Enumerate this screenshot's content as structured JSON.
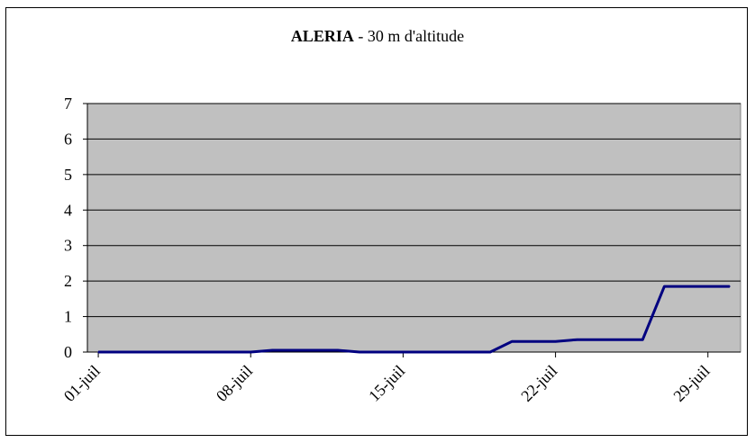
{
  "chart_data": {
    "type": "line",
    "title_bold": "ALERIA",
    "title_rest": " - 30 m d'altitude",
    "xlabel": "",
    "ylabel": "",
    "ylim": [
      0,
      7
    ],
    "yticks": [
      "0",
      "1",
      "2",
      "3",
      "4",
      "5",
      "6",
      "7"
    ],
    "xticks": [
      {
        "label": "01-juil",
        "day": 1
      },
      {
        "label": "08-juil",
        "day": 8
      },
      {
        "label": "15-juil",
        "day": 15
      },
      {
        "label": "22-juil",
        "day": 22
      },
      {
        "label": "29-juil",
        "day": 29
      }
    ],
    "xlim": [
      0.5,
      30.5
    ],
    "grid": true,
    "legend": "none",
    "series": [
      {
        "color": "#000080",
        "points": [
          {
            "day": 1,
            "value": 0
          },
          {
            "day": 8,
            "value": 0
          },
          {
            "day": 9,
            "value": 0.05
          },
          {
            "day": 12,
            "value": 0.05
          },
          {
            "day": 13,
            "value": 0
          },
          {
            "day": 19,
            "value": 0
          },
          {
            "day": 20,
            "value": 0.3
          },
          {
            "day": 22,
            "value": 0.3
          },
          {
            "day": 23,
            "value": 0.35
          },
          {
            "day": 26,
            "value": 0.35
          },
          {
            "day": 27,
            "value": 1.85
          },
          {
            "day": 30,
            "value": 1.85
          }
        ]
      }
    ],
    "plot_background": "#c0c0c0"
  }
}
